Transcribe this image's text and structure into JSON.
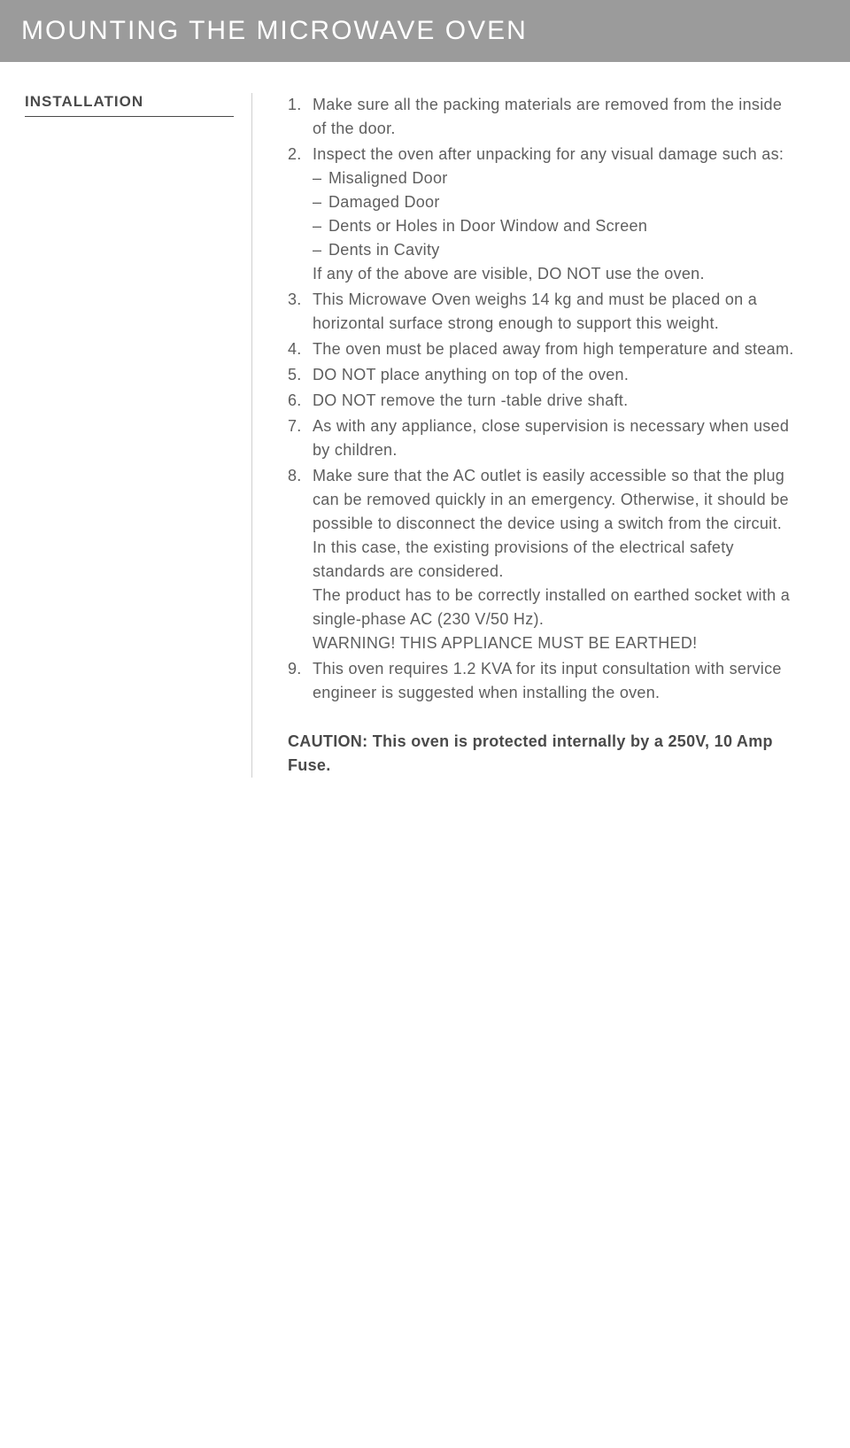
{
  "title": "MOUNTING THE MICROWAVE OVEN",
  "section_label": "INSTALLATION",
  "items": [
    {
      "num": "1.",
      "text": "Make sure all the packing materials are removed from the inside of the door."
    },
    {
      "num": "2.",
      "lead": "Inspect the oven after unpacking for any visual damage such as:",
      "subitems": [
        "Misaligned Door",
        "Damaged Door",
        "Dents or Holes in Door Window and Screen",
        "Dents in Cavity"
      ],
      "tail": "If any of the above are visible, DO NOT use the oven."
    },
    {
      "num": "3.",
      "text": "This Microwave Oven weighs 14 kg and must be placed on a horizontal surface strong enough to support this weight."
    },
    {
      "num": "4.",
      "text": "The oven must be placed away from high temperature and steam."
    },
    {
      "num": "5.",
      "text": "DO NOT place anything on top of the oven."
    },
    {
      "num": "6.",
      "text": "DO NOT remove the turn -table drive shaft."
    },
    {
      "num": "7.",
      "text": "As with any appliance, close supervision is necessary when used by children."
    },
    {
      "num": "8.",
      "paragraphs": [
        "Make sure that the AC outlet is easily accessible so that the plug can be removed quickly in an emergency. Otherwise, it should be possible to disconnect the device using a switch from the circuit. In this case, the existing provisions of the electrical safety standards are considered.",
        "The product has to be correctly installed on earthed socket with a single-phase AC (230 V/50 Hz).",
        "WARNING! THIS APPLIANCE MUST BE EARTHED!"
      ]
    },
    {
      "num": "9.",
      "text": "This oven requires 1.2 KVA for its input consultation with service engineer is suggested when installing the oven."
    }
  ],
  "caution": "CAUTION: This oven is protected internally by a 250V, 10 Amp Fuse."
}
